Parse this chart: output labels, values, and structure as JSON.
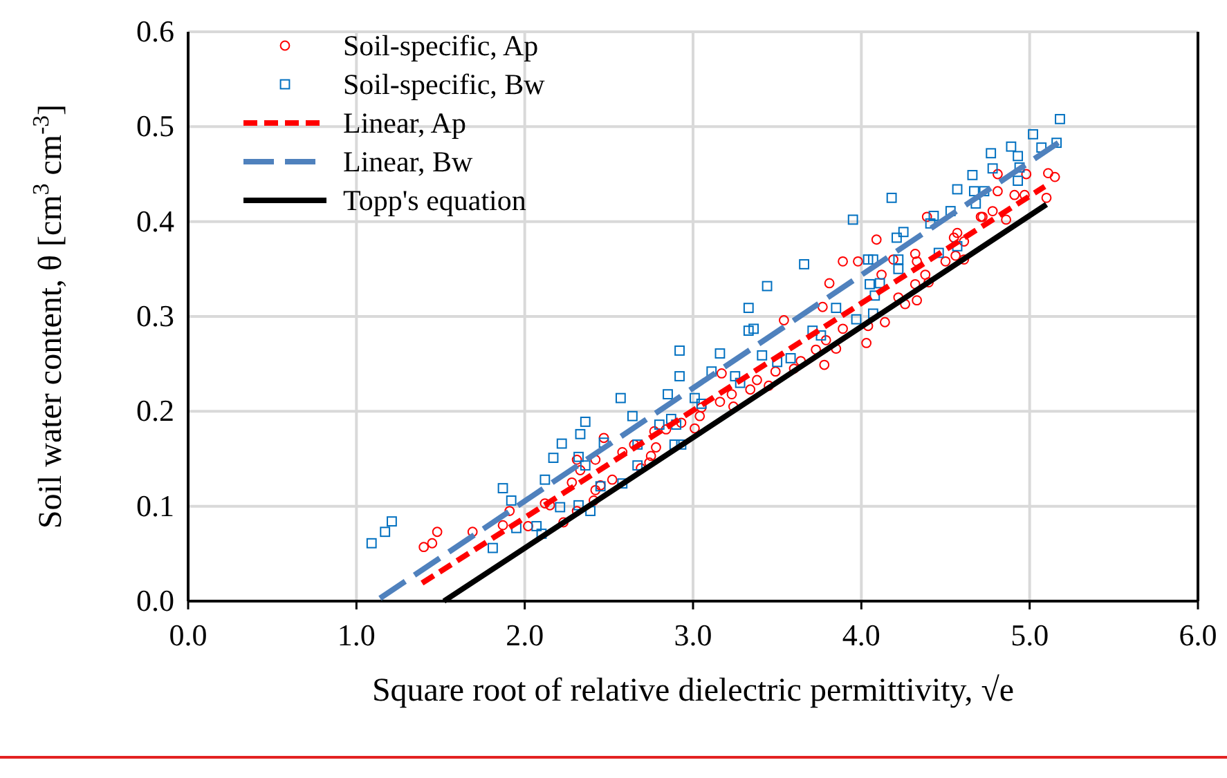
{
  "chart_data": {
    "type": "scatter",
    "xlabel": "Square root of relative dielectric permittivity, √e",
    "ylabel": "Soil water content, θ [cm$^{3}$ cm$^{-3}$]",
    "xlim": [
      0,
      6
    ],
    "ylim": [
      0,
      0.6
    ],
    "xticks": [
      {
        "value": 0,
        "label": "0.0"
      },
      {
        "value": 1,
        "label": "1.0"
      },
      {
        "value": 2,
        "label": "2.0"
      },
      {
        "value": 3,
        "label": "3.0"
      },
      {
        "value": 4,
        "label": "4.0"
      },
      {
        "value": 5,
        "label": "5.0"
      },
      {
        "value": 6,
        "label": "6.0"
      }
    ],
    "yticks": [
      {
        "value": 0,
        "label": "0.0"
      },
      {
        "value": 0.1,
        "label": "0.1"
      },
      {
        "value": 0.2,
        "label": "0.2"
      },
      {
        "value": 0.3,
        "label": "0.3"
      },
      {
        "value": 0.4,
        "label": "0.4"
      },
      {
        "value": 0.5,
        "label": "0.5"
      },
      {
        "value": 0.6,
        "label": "0.6"
      }
    ],
    "grid": true,
    "legend": "top left",
    "series": [
      {
        "name": "Soil-specific, Ap",
        "marker": "circle",
        "color": "#ff0000",
        "x": [
          1.4,
          1.45,
          1.48,
          1.69,
          1.91,
          1.87,
          2.02,
          2.12,
          2.15,
          2.23,
          2.31,
          2.28,
          2.33,
          2.31,
          2.41,
          2.42,
          2.42,
          2.45,
          2.47,
          2.52,
          2.58,
          2.65,
          2.69,
          2.74,
          2.75,
          2.78,
          2.77,
          2.84,
          2.93,
          3.01,
          3.04,
          3.05,
          3.16,
          3.24,
          3.23,
          3.34,
          3.17,
          3.38,
          3.45,
          3.49,
          3.54,
          3.6,
          3.64,
          3.78,
          3.73,
          3.79,
          3.85,
          3.89,
          3.77,
          3.81,
          3.89,
          3.98,
          4.03,
          4.04,
          4.12,
          4.14,
          4.19,
          4.22,
          4.26,
          4.32,
          4.33,
          4.33,
          4.32,
          4.38,
          4.4,
          4.09,
          4.39,
          4.5,
          4.55,
          4.57,
          4.56,
          4.61,
          4.61,
          4.71,
          4.72,
          4.78,
          4.86,
          4.81,
          4.81,
          4.91,
          4.98,
          4.97,
          5.1,
          5.11,
          5.15
        ],
        "values": [
          0.057,
          0.061,
          0.073,
          0.073,
          0.095,
          0.08,
          0.079,
          0.103,
          0.101,
          0.083,
          0.095,
          0.125,
          0.138,
          0.149,
          0.106,
          0.117,
          0.149,
          0.122,
          0.172,
          0.128,
          0.157,
          0.165,
          0.14,
          0.146,
          0.153,
          0.162,
          0.179,
          0.181,
          0.188,
          0.182,
          0.195,
          0.204,
          0.21,
          0.205,
          0.218,
          0.223,
          0.24,
          0.233,
          0.227,
          0.242,
          0.296,
          0.245,
          0.253,
          0.249,
          0.265,
          0.275,
          0.266,
          0.287,
          0.31,
          0.335,
          0.358,
          0.358,
          0.272,
          0.29,
          0.344,
          0.294,
          0.36,
          0.32,
          0.313,
          0.366,
          0.358,
          0.317,
          0.334,
          0.344,
          0.336,
          0.381,
          0.405,
          0.358,
          0.383,
          0.388,
          0.364,
          0.379,
          0.36,
          0.405,
          0.405,
          0.411,
          0.402,
          0.432,
          0.45,
          0.428,
          0.45,
          0.428,
          0.425,
          0.451,
          0.447
        ]
      },
      {
        "name": "Soil-specific, Bw",
        "marker": "square",
        "color": "#0070c0",
        "x": [
          1.09,
          1.17,
          1.21,
          1.81,
          1.87,
          1.92,
          1.95,
          2.07,
          2.1,
          2.12,
          2.17,
          2.22,
          2.21,
          2.32,
          2.39,
          2.33,
          2.36,
          2.32,
          2.36,
          2.45,
          2.47,
          2.57,
          2.58,
          2.64,
          2.67,
          2.67,
          2.8,
          2.85,
          2.87,
          2.9,
          2.89,
          2.93,
          2.92,
          2.92,
          3.01,
          3.05,
          3.11,
          3.16,
          3.25,
          3.28,
          3.33,
          3.36,
          3.33,
          3.44,
          3.41,
          3.5,
          3.58,
          3.66,
          3.71,
          3.76,
          3.85,
          3.97,
          3.95,
          4.04,
          4.07,
          4.05,
          4.11,
          4.08,
          4.07,
          4.22,
          4.22,
          4.21,
          4.25,
          4.18,
          4.41,
          4.43,
          4.46,
          4.53,
          4.57,
          4.57,
          4.67,
          4.68,
          4.73,
          4.66,
          4.77,
          4.78,
          4.89,
          4.93,
          4.94,
          4.93,
          5.02,
          5.07,
          5.16,
          5.18
        ],
        "values": [
          0.061,
          0.073,
          0.084,
          0.056,
          0.119,
          0.106,
          0.077,
          0.079,
          0.071,
          0.128,
          0.151,
          0.166,
          0.099,
          0.101,
          0.095,
          0.176,
          0.189,
          0.152,
          0.143,
          0.121,
          0.167,
          0.214,
          0.124,
          0.195,
          0.143,
          0.165,
          0.186,
          0.218,
          0.192,
          0.186,
          0.165,
          0.165,
          0.264,
          0.237,
          0.214,
          0.208,
          0.242,
          0.261,
          0.237,
          0.23,
          0.285,
          0.287,
          0.309,
          0.332,
          0.259,
          0.252,
          0.256,
          0.355,
          0.285,
          0.28,
          0.309,
          0.297,
          0.402,
          0.36,
          0.36,
          0.334,
          0.335,
          0.322,
          0.303,
          0.36,
          0.35,
          0.383,
          0.389,
          0.425,
          0.398,
          0.406,
          0.367,
          0.411,
          0.374,
          0.434,
          0.432,
          0.419,
          0.432,
          0.449,
          0.472,
          0.456,
          0.479,
          0.469,
          0.457,
          0.443,
          0.492,
          0.478,
          0.483,
          0.508
        ]
      },
      {
        "name": "Linear, Ap",
        "type": "line",
        "line_style": "dashed",
        "color": "#ff0000",
        "x": [
          1.39,
          5.09
        ],
        "values": [
          0.019,
          0.437
        ]
      },
      {
        "name": "Linear, Bw",
        "type": "line",
        "line_style": "dashed",
        "color": "#4f81bd",
        "x": [
          1.14,
          5.17
        ],
        "values": [
          0.003,
          0.483
        ]
      },
      {
        "name": "Topp's equation",
        "type": "line",
        "line_style": "solid",
        "color": "#000000",
        "x": [
          1.52,
          3.4,
          5.1
        ],
        "values": [
          0.0,
          0.219,
          0.418
        ]
      }
    ]
  }
}
